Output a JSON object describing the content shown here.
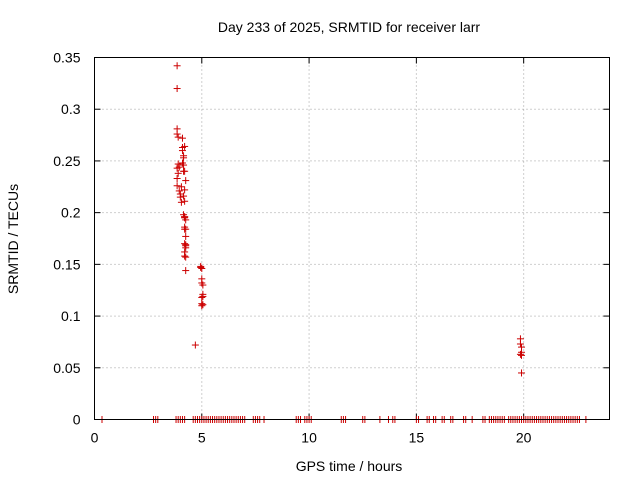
{
  "chart_data": {
    "type": "scatter",
    "title": "Day 233 of 2025, SRMTID for receiver larr",
    "xlabel": "GPS time / hours",
    "ylabel": "SRMTID / TECUs",
    "xlim": [
      0,
      24
    ],
    "ylim": [
      0,
      0.35
    ],
    "xticks": [
      0,
      5,
      10,
      15,
      20
    ],
    "xtick_labels": [
      "0",
      "5",
      "10",
      "15",
      "20"
    ],
    "yticks": [
      0,
      0.05,
      0.1,
      0.15,
      0.2,
      0.25,
      0.3,
      0.35
    ],
    "ytick_labels": [
      "0",
      "0.05",
      "0.1",
      "0.15",
      "0.2",
      "0.25",
      "0.3",
      "0.35"
    ],
    "grid": true,
    "marker": "+",
    "color": "#cc0000",
    "series": [
      {
        "x": [
          3.85,
          3.85,
          3.85,
          3.85,
          3.9,
          3.9,
          3.85,
          3.9,
          3.85,
          3.95,
          3.85,
          3.95,
          4.0,
          4.0,
          4.05,
          4.05,
          4.1,
          4.1,
          4.1,
          4.15,
          4.15,
          4.15,
          4.1,
          4.15,
          4.2,
          4.2,
          4.15,
          4.2,
          4.2,
          4.25,
          4.15,
          4.2,
          4.25,
          4.2,
          4.2,
          4.25,
          4.25,
          4.25,
          4.2,
          4.2,
          4.25,
          4.25,
          4.2,
          4.2,
          4.25,
          4.2,
          4.25,
          4.7,
          4.95,
          4.95,
          5.0,
          5.0,
          5.0,
          5.05,
          5.05,
          5.0,
          5.0,
          5.05,
          5.0,
          5.05,
          19.85,
          19.85,
          19.9,
          19.9,
          19.85,
          19.9,
          19.9
        ],
        "y": [
          0.342,
          0.32,
          0.281,
          0.276,
          0.273,
          0.247,
          0.243,
          0.238,
          0.233,
          0.244,
          0.226,
          0.221,
          0.215,
          0.218,
          0.21,
          0.225,
          0.272,
          0.263,
          0.26,
          0.255,
          0.253,
          0.246,
          0.248,
          0.24,
          0.264,
          0.24,
          0.216,
          0.211,
          0.222,
          0.231,
          0.198,
          0.196,
          0.193,
          0.186,
          0.184,
          0.177,
          0.169,
          0.166,
          0.162,
          0.158,
          0.157,
          0.144,
          0.196,
          0.195,
          0.184,
          0.17,
          0.168,
          0.072,
          0.148,
          0.147,
          0.146,
          0.136,
          0.132,
          0.13,
          0.121,
          0.118,
          0.112,
          0.111,
          0.11,
          0.119,
          0.078,
          0.073,
          0.07,
          0.065,
          0.063,
          0.062,
          0.045
        ]
      },
      {
        "x": [
          0.35,
          2.75,
          2.85,
          2.95,
          3.8,
          3.9,
          4.0,
          4.1,
          4.2,
          4.6,
          4.7,
          4.8,
          4.9,
          5.0,
          5.1,
          5.2,
          5.3,
          5.4,
          5.5,
          5.6,
          5.7,
          5.8,
          5.9,
          6.0,
          6.1,
          6.2,
          6.3,
          6.4,
          6.5,
          6.6,
          6.7,
          6.8,
          6.9,
          7.0,
          7.4,
          7.5,
          7.6,
          7.7,
          7.9,
          9.4,
          9.5,
          9.6,
          9.8,
          9.9,
          10.0,
          10.1,
          11.5,
          11.6,
          11.7,
          12.5,
          12.6,
          13.3,
          13.7,
          13.9,
          14.0,
          15.0,
          15.1,
          15.5,
          15.6,
          15.8,
          15.9,
          16.2,
          16.3,
          16.6,
          16.7,
          17.2,
          17.3,
          17.6,
          18.1,
          18.2,
          18.4,
          18.5,
          18.6,
          18.7,
          18.8,
          18.9,
          19.0,
          19.1,
          19.3,
          19.4,
          19.5,
          19.6,
          19.7,
          19.8,
          19.9,
          20.0,
          20.1,
          20.2,
          20.3,
          20.4,
          20.5,
          20.6,
          20.7,
          20.8,
          20.9,
          21.0,
          21.1,
          21.2,
          21.3,
          21.4,
          21.5,
          21.6,
          21.7,
          21.8,
          21.9,
          22.0,
          22.1,
          22.2,
          22.3,
          22.4,
          22.5,
          22.6,
          22.9
        ],
        "y": [
          0,
          0,
          0,
          0,
          0,
          0,
          0,
          0,
          0,
          0,
          0,
          0,
          0,
          0,
          0,
          0,
          0,
          0,
          0,
          0,
          0,
          0,
          0,
          0,
          0,
          0,
          0,
          0,
          0,
          0,
          0,
          0,
          0,
          0,
          0,
          0,
          0,
          0,
          0,
          0,
          0,
          0,
          0,
          0,
          0,
          0,
          0,
          0,
          0,
          0,
          0,
          0,
          0,
          0,
          0,
          0,
          0,
          0,
          0,
          0,
          0,
          0,
          0,
          0,
          0,
          0,
          0,
          0,
          0,
          0,
          0,
          0,
          0,
          0,
          0,
          0,
          0,
          0,
          0,
          0,
          0,
          0,
          0,
          0,
          0,
          0,
          0,
          0,
          0,
          0,
          0,
          0,
          0,
          0,
          0,
          0,
          0,
          0,
          0,
          0,
          0,
          0,
          0,
          0,
          0,
          0,
          0,
          0,
          0,
          0,
          0,
          0,
          0
        ]
      }
    ]
  }
}
